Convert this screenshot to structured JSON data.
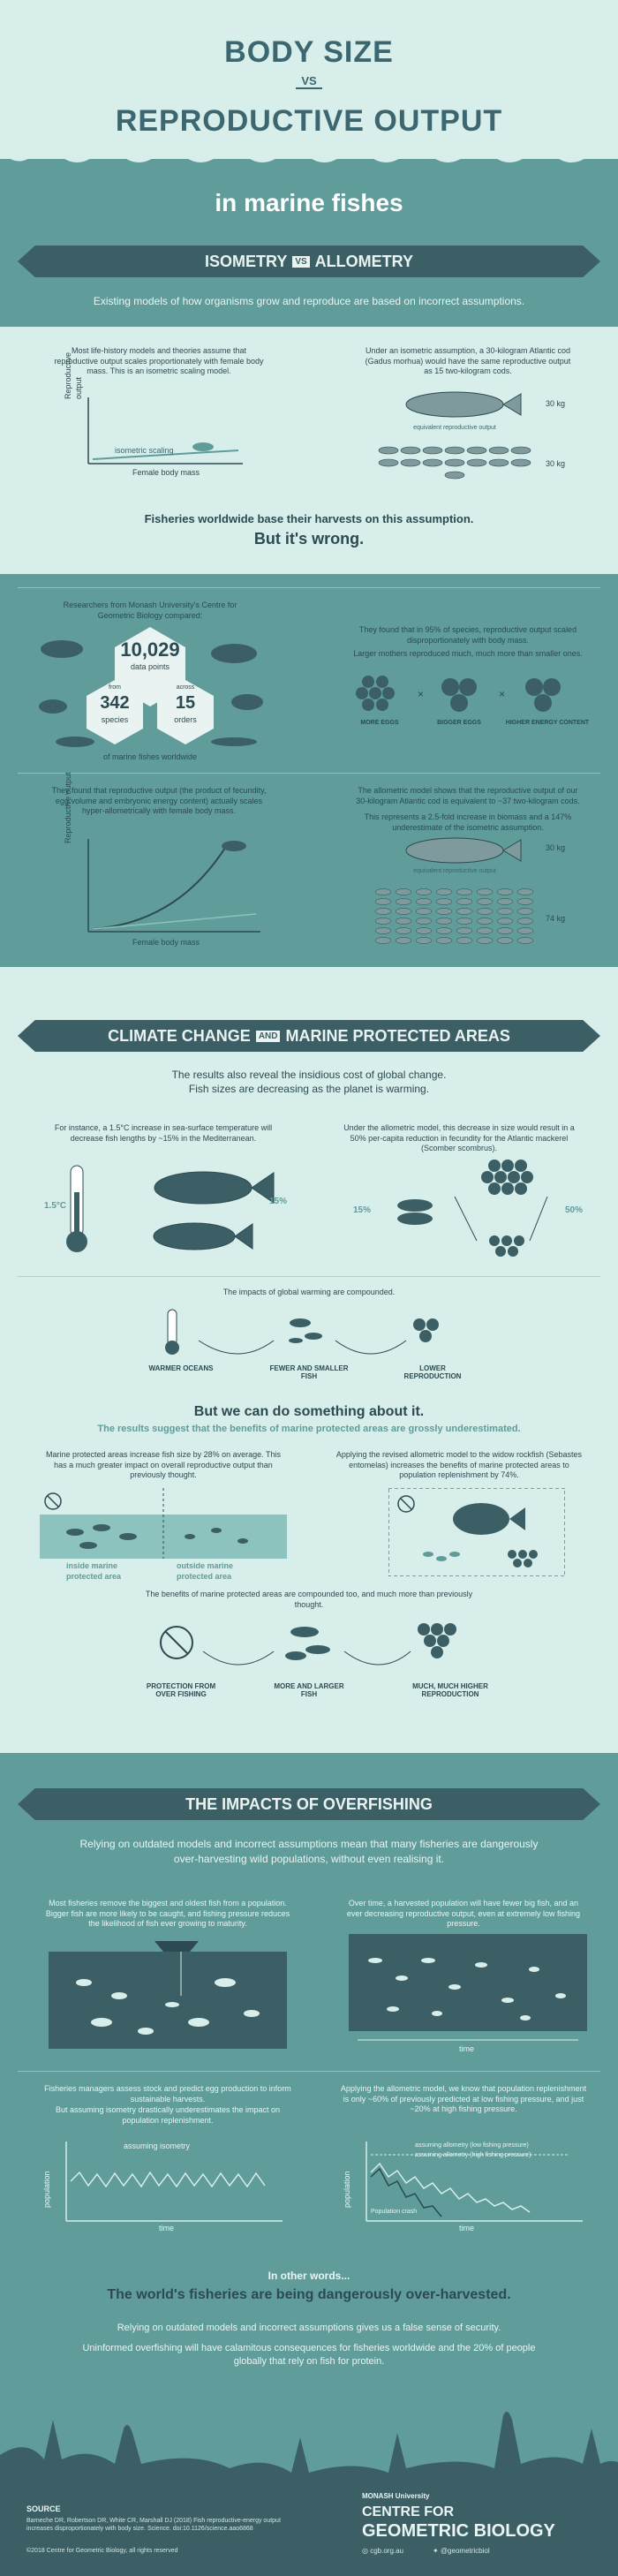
{
  "header": {
    "title_line1": "BODY SIZE",
    "vs": "VS",
    "title_line2": "REPRODUCTIVE OUTPUT",
    "subtitle": "in marine fishes"
  },
  "section1": {
    "ribbon_left": "ISOMETRY",
    "ribbon_vs": "VS",
    "ribbon_right": "ALLOMETRY",
    "intro": "Existing models of how organisms grow and reproduce are based on incorrect assumptions.",
    "isometry_text": "Most life-history models and theories assume that reproductive output scales proportionately with female body mass. This is an isometric scaling model.",
    "isometry_axis_y": "Reproductive output",
    "isometry_axis_x": "Female body mass",
    "isometry_curve_label": "isometric scaling",
    "iso_example_text": "Under an isometric assumption, a 30-kilogram Atlantic cod (Gadus morhua) would have the same reproductive output as 15 two-kilogram cods.",
    "iso_label_equivalent": "equivalent reproductive output",
    "iso_weight_top": "30 kg",
    "iso_weight_bottom": "30 kg",
    "statement1": "Fisheries worldwide base their harvests on this assumption.",
    "statement2": "But it's wrong.",
    "researchers_text": "Researchers from Monash University's Centre for Geometric Biology compared:",
    "stat_data_points_value": "10,029",
    "stat_data_points_label": "data points",
    "stat_species_prefix": "from",
    "stat_species_value": "342",
    "stat_species_label": "species",
    "stat_orders_prefix": "across",
    "stat_orders_value": "15",
    "stat_orders_label": "orders",
    "stat_footer": "of marine fishes worldwide",
    "found_text1": "They found that in 95% of species, reproductive output scaled disproportionately with body mass.",
    "found_text2": "Larger mothers reproduced much, much more than smaller ones.",
    "egg_label1": "MORE EGGS",
    "egg_label2": "BIGGER EGGS",
    "egg_label3": "HIGHER ENERGY CONTENT",
    "hyper_text": "They found that reproductive output (the product of fecundity, egg volume and embryonic energy content) actually scales hyper-allometrically with female body mass.",
    "hyper_axis_y": "Reproductive output",
    "hyper_axis_x": "Female body mass",
    "allo_text1": "The allometric model shows that the reproductive output of our 30-kilogram Atlantic cod is equivalent to ~37 two-kilogram cods.",
    "allo_text2": "This represents a 2.5-fold increase in biomass and a 147% underestimate of the isometric assumption.",
    "allo_label_equivalent": "equivalent reproductive output",
    "allo_weight_top": "30 kg",
    "allo_weight_bottom": "74 kg"
  },
  "section2": {
    "ribbon_left": "CLIMATE CHANGE",
    "ribbon_and": "AND",
    "ribbon_right": "MARINE PROTECTED AREAS",
    "intro1": "The results also reveal the insidious cost of global change.",
    "intro2": "Fish sizes are decreasing as the planet is warming.",
    "temp_text": "For instance, a 1.5°C increase in sea-surface temperature will decrease fish lengths by ~15% in the Mediterranean.",
    "temp_label": "1.5°C",
    "length_label": "15%",
    "mackerel_text": "Under the allometric model, this decrease in size would result in a 50% per-capita reduction in fecundity for the Atlantic mackerel (Scomber scombrus).",
    "mackerel_size_label": "15%",
    "mackerel_fec_label": "50%",
    "compound_text": "The impacts of global warming are compounded.",
    "chain1": "WARMER OCEANS",
    "chain2": "FEWER AND SMALLER FISH",
    "chain3": "LOWER REPRODUCTION",
    "good_news1": "But we can do something about it.",
    "good_news2": "The results suggest that the benefits of marine protected areas are grossly underestimated.",
    "mpa_text": "Marine protected areas increase fish size by 28% on average. This has a much greater impact on overall reproductive output than previously thought.",
    "mpa_inside": "inside marine protected area",
    "mpa_outside": "outside marine protected area",
    "rockfish_text": "Applying the revised allometric model to the widow rockfish (Sebastes entomelas) increases the benefits of marine protected areas to population replenishment by 74%.",
    "benefit_text": "The benefits of marine protected areas are compounded too, and much more than previously thought.",
    "benefit1": "PROTECTION FROM OVER FISHING",
    "benefit2": "MORE AND LARGER FISH",
    "benefit3": "MUCH, MUCH HIGHER REPRODUCTION"
  },
  "section3": {
    "ribbon": "THE IMPACTS OF OVERFISHING",
    "intro": "Relying on outdated models and incorrect assumptions mean that many fisheries are dangerously over-harvesting wild populations, without even realising it.",
    "remove_text": "Most fisheries remove the biggest and oldest fish from a population. Bigger fish are more likely to be caught, and fishing pressure reduces the likelihood of fish ever growing to maturity.",
    "over_time_text": "Over time, a harvested population will have fewer big fish, and an ever decreasing reproductive output, even at extremely low fishing pressure.",
    "time_label": "time",
    "managers_text1": "Fisheries managers assess stock and predict egg production to inform sustainable harvests.",
    "managers_text2": "But assuming isometry drastically underestimates the impact on population replenishment.",
    "chart1_legend": "assuming isometry",
    "chart_ylabel": "population",
    "chart_xlabel": "time",
    "allometric_text": "Applying the allometric model, we know that population replenishment is only ~60% of previously predicted at low fishing pressure, and just ~20% at high fishing pressure.",
    "chart2_legend1": "assuming allometry (low fishing pressure)",
    "chart2_legend2": "assuming allometry (high fishing pressure)",
    "chart2_crash": "Population crash",
    "other_words": "In other words...",
    "conclusion": "The world's fisheries are being dangerously over-harvested.",
    "closing1": "Relying on outdated models and incorrect assumptions gives us a false sense of security.",
    "closing2": "Uninformed overfishing will have calamitous consequences for fisheries worldwide and the 20% of people globally that rely on fish for protein."
  },
  "footer": {
    "source_label": "SOURCE",
    "source_text": "Barneche DR, Robertson DR, White CR, Marshall DJ (2018) Fish reproductive-energy output increases disproportionately with body size. Science. doi:10.1126/science.aao6868",
    "copyright": "©2018 Centre for Geometric Biology, all rights reserved",
    "uni": "MONASH University",
    "centre1": "CENTRE FOR",
    "centre2": "GEOMETRIC BIOLOGY",
    "web": "cgb.org.au",
    "twitter": "@geometricbiol"
  },
  "colors": {
    "teal": "#5f9c9a",
    "light": "#d7eeea",
    "dark": "#2c4a52",
    "ribbon": "#3c5f66"
  }
}
